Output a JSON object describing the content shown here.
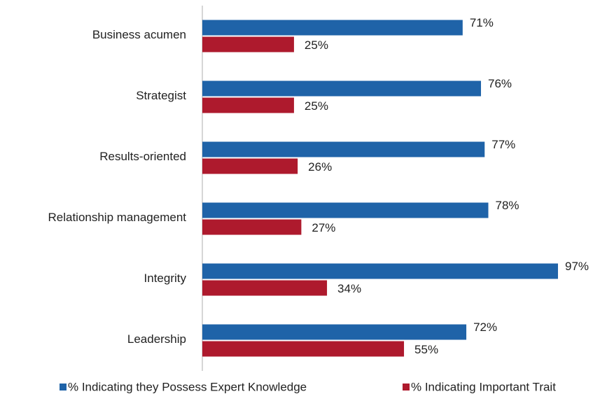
{
  "chart_data": {
    "type": "bar",
    "orientation": "horizontal",
    "categories": [
      "Business acumen",
      "Strategist",
      "Results-oriented",
      "Relationship management",
      "Integrity",
      "Leadership"
    ],
    "series": [
      {
        "name": "% Indicating they Possess Expert Knowledge",
        "color": "#1f63a8",
        "values": [
          71,
          76,
          77,
          78,
          97,
          72
        ],
        "value_labels": [
          "71%",
          "76%",
          "77%",
          "78%",
          "97%",
          "72%"
        ]
      },
      {
        "name": "% Indicating Important Trait",
        "color": "#ae1a2d",
        "values": [
          25,
          25,
          26,
          27,
          34,
          55
        ],
        "value_labels": [
          "25%",
          "25%",
          "26%",
          "27%",
          "34%",
          "55%"
        ]
      }
    ],
    "xlim": [
      0,
      100
    ],
    "legend": "bottom"
  }
}
